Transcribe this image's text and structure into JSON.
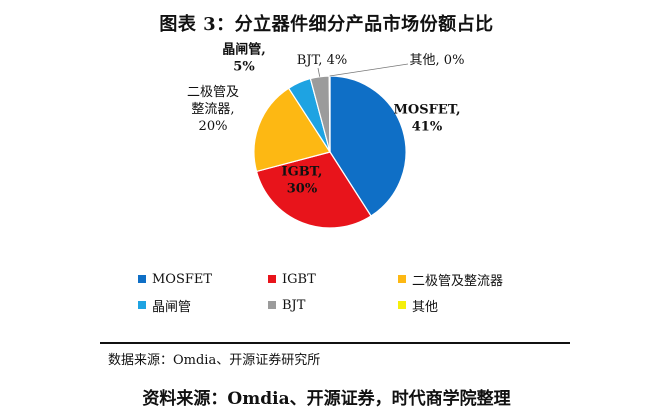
{
  "title": "图表 3：分立器件细分产品市场份额占比",
  "chart_data": {
    "type": "pie",
    "slices": [
      {
        "name": "MOSFET",
        "value": 41,
        "color": "#0F6FC6",
        "label": [
          "MOSFET,",
          "41%"
        ],
        "bold": true
      },
      {
        "name": "IGBT",
        "value": 30,
        "color": "#E8141B",
        "label": [
          "IGBT,",
          "30%"
        ],
        "bold": true
      },
      {
        "name": "二极管及整流器",
        "value": 20,
        "color": "#FDB813",
        "label": [
          "二极管及",
          "整流器,",
          "20%"
        ],
        "bold": false
      },
      {
        "name": "晶闸管",
        "value": 5,
        "color": "#1EA3E2",
        "label": [
          "晶闸管,",
          "5%"
        ],
        "bold": true
      },
      {
        "name": "BJT",
        "value": 4,
        "color": "#9B9B9B",
        "label": [
          "BJT, 4%"
        ],
        "bold": false
      },
      {
        "name": "其他",
        "value": 0,
        "color": "#F5EF0B",
        "label": [
          "其他, 0%"
        ],
        "bold": false
      }
    ],
    "legend_placement": "bottom"
  },
  "note": "数据来源：Omdia、开源证券研究所",
  "source": "资料来源：Omdia、开源证券，时代商学院整理"
}
